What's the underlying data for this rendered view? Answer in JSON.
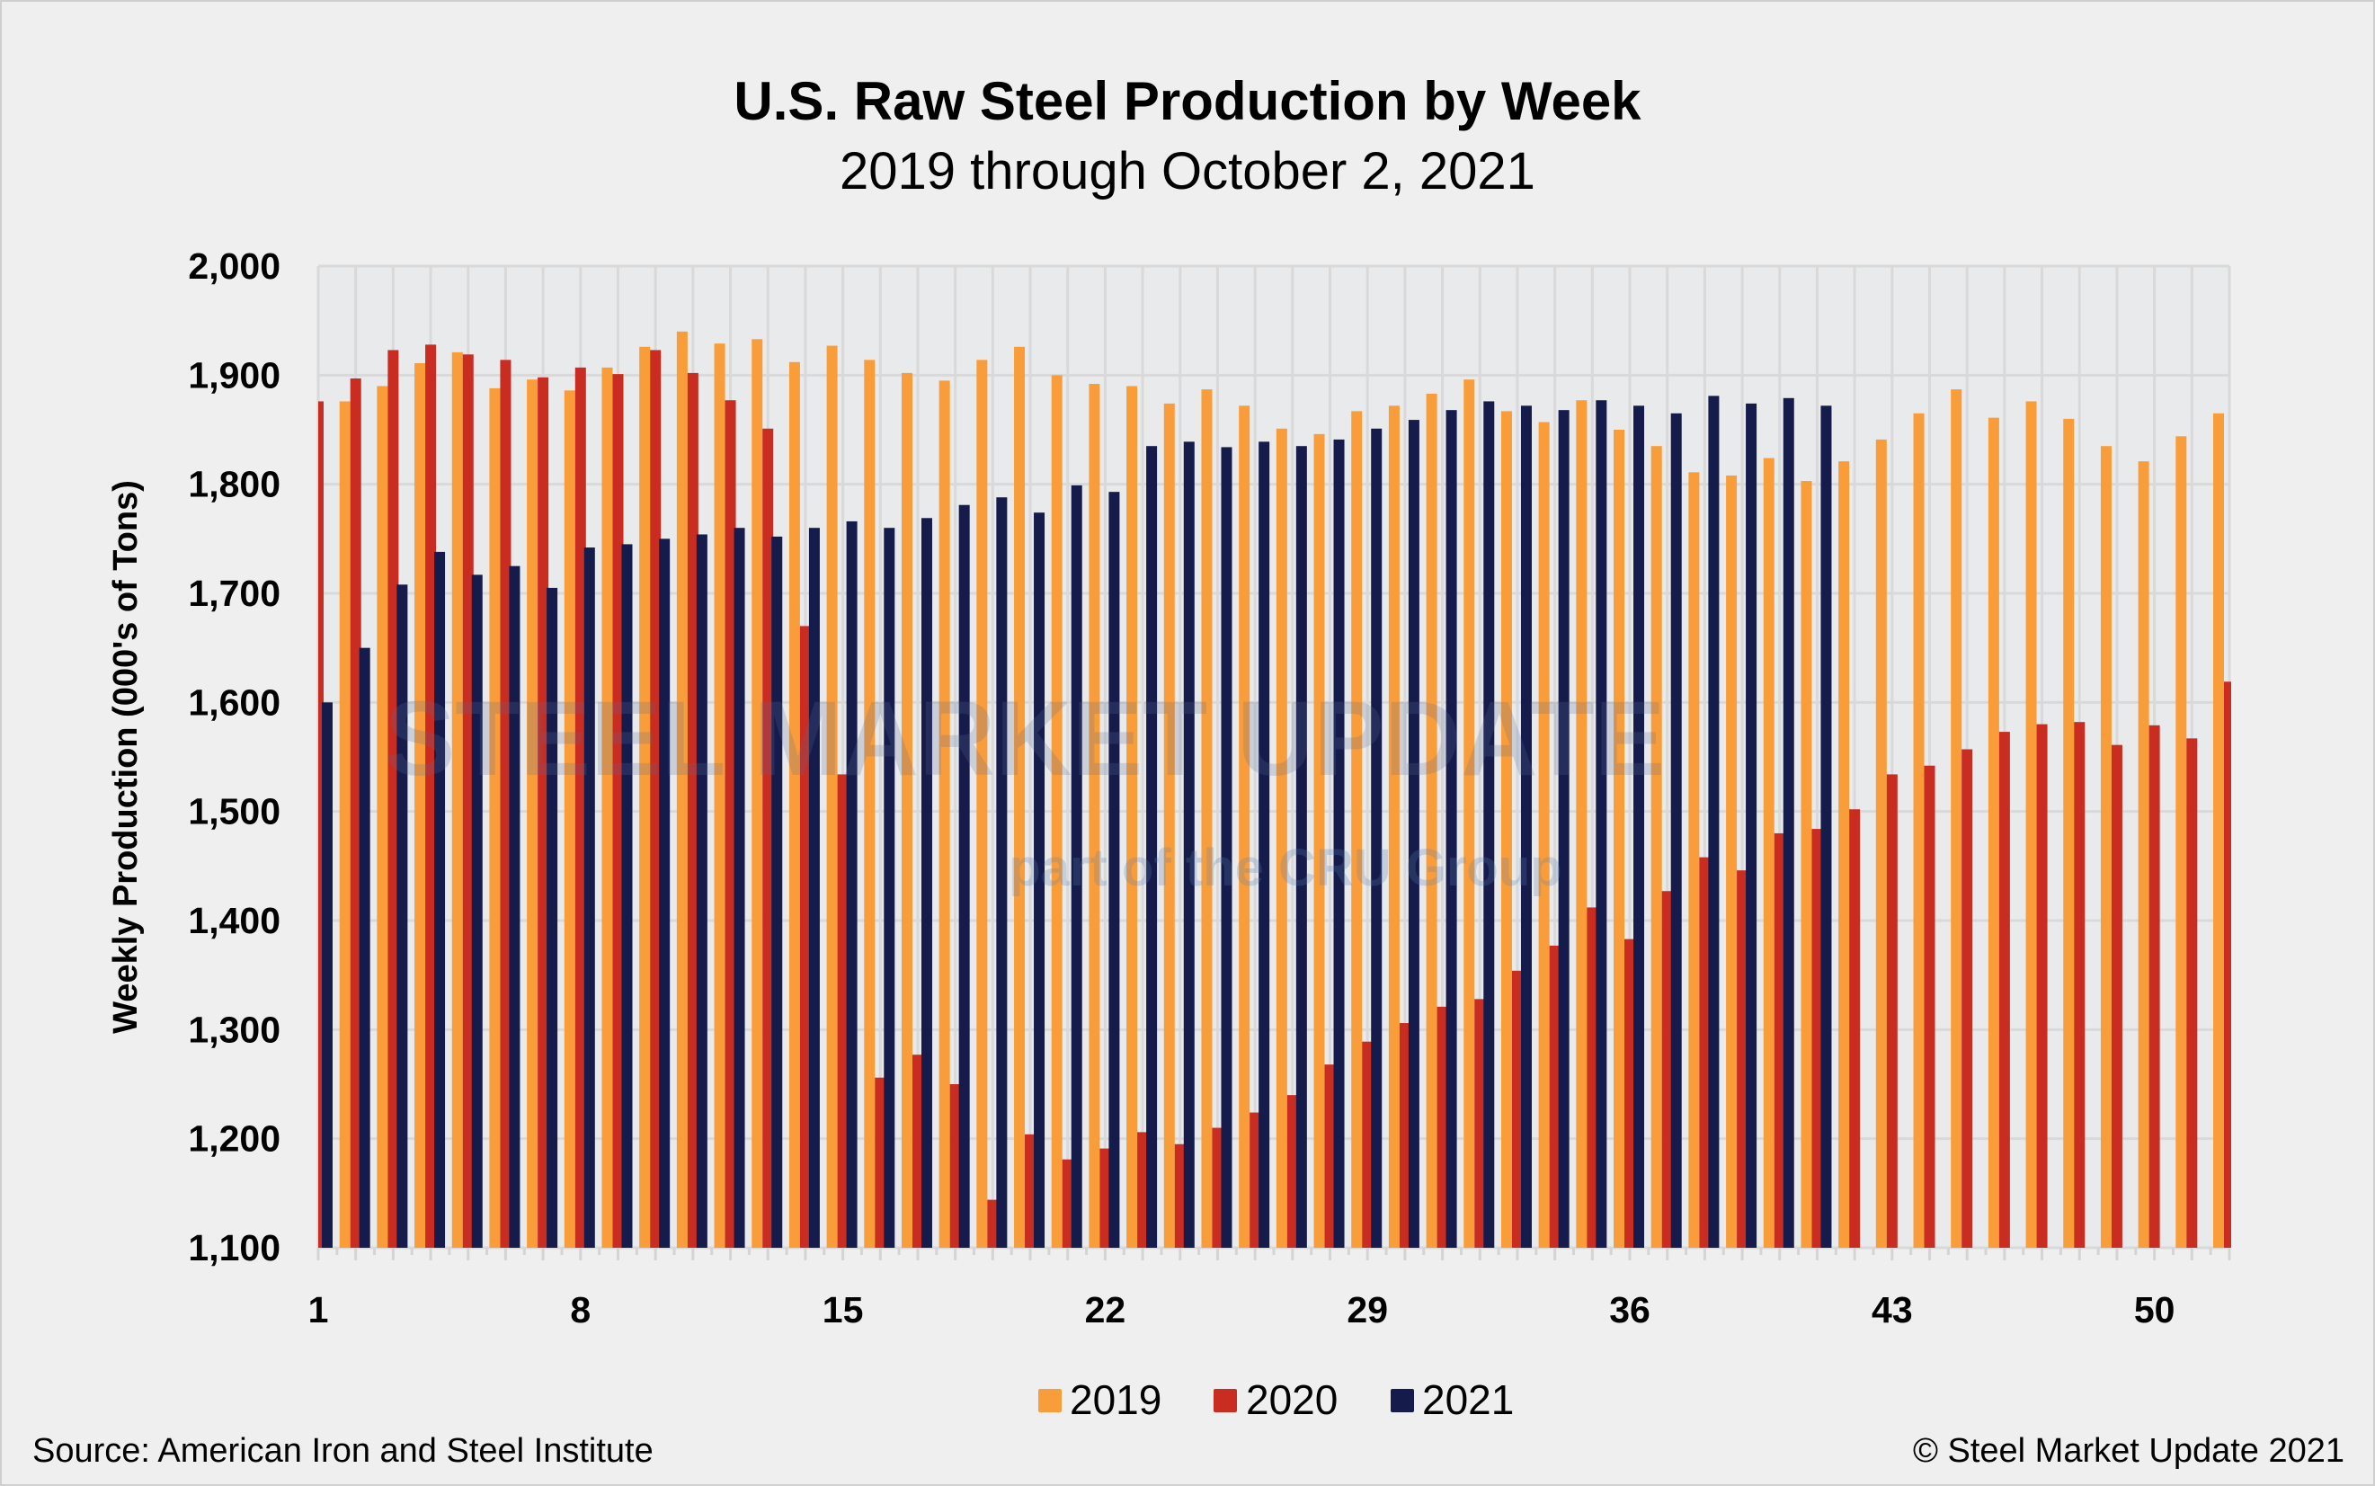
{
  "chart_data": {
    "type": "bar",
    "title": "U.S. Raw Steel Production by Week",
    "subtitle": "2019 through October 2, 2021",
    "xlabel": "",
    "ylabel": "Weekly Production (000's of Tons)",
    "ylim": [
      1100,
      2000
    ],
    "yticks": [
      "1,100",
      "1,200",
      "1,300",
      "1,400",
      "1,500",
      "1,600",
      "1,700",
      "1,800",
      "1,900",
      "2,000"
    ],
    "xtick_labels": [
      "1",
      "8",
      "15",
      "22",
      "29",
      "36",
      "43",
      "50"
    ],
    "grid": true,
    "legend_position": "bottom",
    "categories": [
      1,
      2,
      3,
      4,
      5,
      6,
      7,
      8,
      9,
      10,
      11,
      12,
      13,
      14,
      15,
      16,
      17,
      18,
      19,
      20,
      21,
      22,
      23,
      24,
      25,
      26,
      27,
      28,
      29,
      30,
      31,
      32,
      33,
      34,
      35,
      36,
      37,
      38,
      39,
      40,
      41,
      42,
      43,
      44,
      45,
      46,
      47,
      48,
      49,
      50,
      51,
      52
    ],
    "series": [
      {
        "name": "2019",
        "color": "#f99d3a",
        "values": [
          null,
          1876,
          1890,
          1911,
          1921,
          1888,
          1896,
          1886,
          1907,
          1926,
          1940,
          1929,
          1933,
          1912,
          1927,
          1914,
          1902,
          1895,
          1914,
          1926,
          1900,
          1892,
          1890,
          1874,
          1887,
          1872,
          1851,
          1846,
          1867,
          1872,
          1883,
          1896,
          1867,
          1857,
          1877,
          1850,
          1835,
          1811,
          1808,
          1824,
          1803,
          1821,
          1841,
          1865,
          1887,
          1861,
          1876,
          1860,
          1835,
          1821,
          1844,
          1865
        ]
      },
      {
        "name": "2020",
        "color": "#c92c20",
        "values": [
          1876,
          1897,
          1923,
          1928,
          1919,
          1914,
          1898,
          1907,
          1901,
          1923,
          1902,
          1877,
          1851,
          1670,
          1534,
          1256,
          1277,
          1250,
          1144,
          1204,
          1181,
          1191,
          1206,
          1195,
          1210,
          1224,
          1240,
          1268,
          1289,
          1306,
          1321,
          1328,
          1354,
          1377,
          1412,
          1383,
          1427,
          1458,
          1446,
          1480,
          1484,
          1502,
          1534,
          1542,
          1557,
          1573,
          1580,
          1582,
          1561,
          1579,
          1567,
          1619
        ]
      },
      {
        "name": "2021",
        "color": "#151b4a",
        "values": [
          1600,
          1650,
          1708,
          1738,
          1717,
          1725,
          1705,
          1742,
          1745,
          1750,
          1754,
          1760,
          1752,
          1760,
          1766,
          1760,
          1769,
          1781,
          1788,
          1774,
          1799,
          1793,
          1835,
          1839,
          1834,
          1839,
          1835,
          1841,
          1851,
          1859,
          1868,
          1876,
          1872,
          1868,
          1877,
          1872,
          1865,
          1881,
          1874,
          1879,
          1872,
          null,
          null,
          null,
          null,
          null,
          null,
          null,
          null,
          null,
          null,
          null
        ]
      }
    ]
  },
  "footer": {
    "source": "Source: American Iron and Steel Institute",
    "copyright": "© Steel Market Update 2021"
  },
  "watermark": {
    "line1": "STEEL MARKET UPDATE",
    "line2": "part of the CRU Group"
  }
}
